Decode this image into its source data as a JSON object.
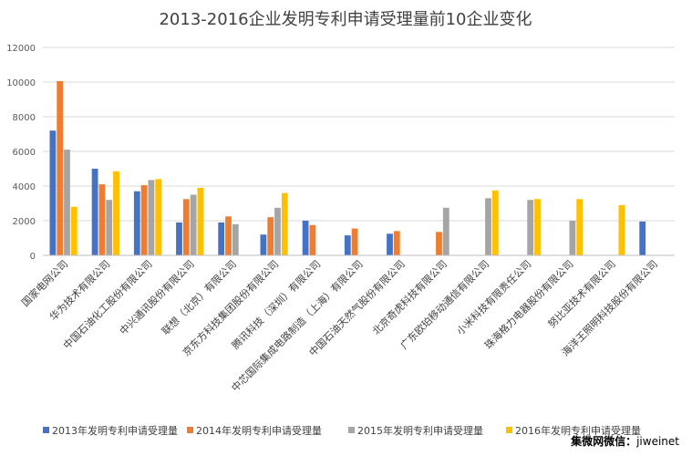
{
  "chart_data": {
    "type": "bar",
    "title": "2013-2016企业发明专利申请受理量前10企业变化",
    "ylim": [
      0,
      12000
    ],
    "yticks": [
      0,
      2000,
      4000,
      6000,
      8000,
      10000,
      12000
    ],
    "grid": true,
    "legend_position": "bottom",
    "categories": [
      "国家电网公司",
      "华为技术有限公司",
      "中国石油化工股份有限公司",
      "中兴通讯股份有限公司",
      "联想（北京）有限公司",
      "京东方科技集团股份有限公司",
      "腾讯科技（深圳）有限公司",
      "中芯国际集成电路制造（上海）有限公司",
      "中国石油天然气股份有限公司",
      "北京奇虎科技有限公司",
      "广东欧珀移动通信有限公司",
      "小米科技有限责任公司",
      "珠海格力电器股份有限公司",
      "努比亚技术有限公司",
      "海洋王照明科技股份有限公司"
    ],
    "series": [
      {
        "name": "2013年发明专利申请受理量",
        "color": "#4472C4",
        "values": [
          7200,
          5000,
          3700,
          1900,
          1900,
          1200,
          2000,
          1150,
          1250,
          null,
          null,
          null,
          null,
          null,
          1950
        ]
      },
      {
        "name": "2014年发明专利申请受理量",
        "color": "#ED7D31",
        "values": [
          10050,
          4100,
          4050,
          3250,
          2250,
          2200,
          1750,
          1550,
          1400,
          1350,
          null,
          null,
          null,
          null,
          null
        ]
      },
      {
        "name": "2015年发明专利申请受理量",
        "color": "#A5A5A5",
        "values": [
          6100,
          3200,
          4350,
          3500,
          1800,
          2750,
          null,
          null,
          null,
          2750,
          3300,
          3200,
          2000,
          null,
          null
        ]
      },
      {
        "name": "2016年发明专利申请受理量",
        "color": "#FFC000",
        "values": [
          2800,
          4850,
          4400,
          3900,
          null,
          3600,
          null,
          null,
          null,
          null,
          3750,
          3250,
          3250,
          2900,
          null
        ]
      }
    ]
  },
  "watermark": {
    "label": "集微网微信：",
    "handle": "jiweinet"
  }
}
